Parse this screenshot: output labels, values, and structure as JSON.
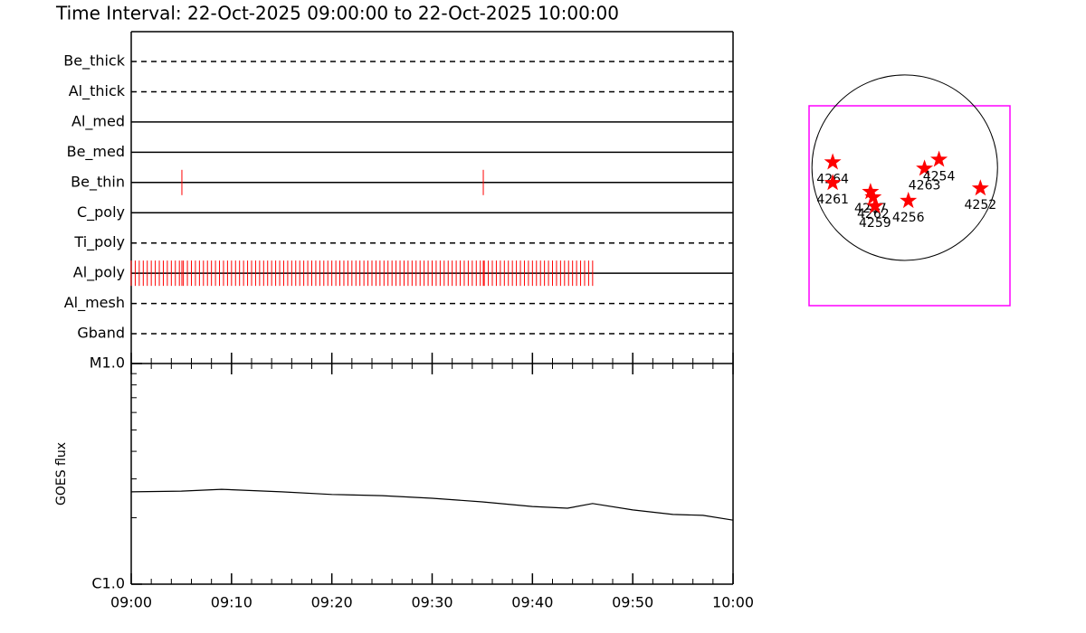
{
  "chart_data": [
    {
      "type": "timeline",
      "title": "Time Interval: 22-Oct-2025 09:00:00 to 22-Oct-2025 10:00:00",
      "xlim": [
        0,
        60
      ],
      "series": [
        {
          "name": "Be_thick",
          "line_style": "dashed",
          "color": "#ff0000",
          "values": []
        },
        {
          "name": "Al_thick",
          "line_style": "dashed",
          "color": "#ff0000",
          "values": []
        },
        {
          "name": "Al_med",
          "line_style": "solid",
          "color": "#ff0000",
          "values": []
        },
        {
          "name": "Be_med",
          "line_style": "solid",
          "color": "#ff0000",
          "values": []
        },
        {
          "name": "Be_thin",
          "line_style": "solid",
          "color": "#ff0000",
          "values": [
            5.05,
            35.1
          ]
        },
        {
          "name": "C_poly",
          "line_style": "solid",
          "color": "#ff0000",
          "values": []
        },
        {
          "name": "Ti_poly",
          "line_style": "dashed",
          "color": "#ff0000",
          "values": []
        },
        {
          "name": "Al_poly",
          "line_style": "solid",
          "color": "#ff0000",
          "values": [
            0,
            0.4,
            0.8,
            1.2,
            1.6,
            2,
            2.4,
            2.8,
            3.2,
            3.6,
            4,
            4.4,
            4.8,
            5.2,
            5.6,
            6,
            6.4,
            6.8,
            7.2,
            7.6,
            8,
            8.4,
            8.8,
            9.2,
            9.6,
            10,
            10.4,
            10.8,
            11.2,
            11.6,
            12,
            12.4,
            12.8,
            13.2,
            13.6,
            14,
            14.4,
            14.8,
            15.2,
            15.6,
            16,
            16.4,
            16.8,
            17.2,
            17.6,
            18,
            18.4,
            18.8,
            19.2,
            19.6,
            20,
            20.4,
            20.8,
            21.2,
            21.6,
            22,
            22.4,
            22.8,
            23.2,
            23.6,
            24,
            24.4,
            24.8,
            25.2,
            25.6,
            26,
            26.4,
            26.8,
            27.2,
            27.6,
            28,
            28.4,
            28.8,
            29.2,
            29.6,
            30,
            30.4,
            30.8,
            31.2,
            31.6,
            32,
            32.4,
            32.8,
            33.2,
            33.6,
            34,
            34.4,
            34.8,
            35.2,
            35.6,
            36,
            36.4,
            36.8,
            37.2,
            37.6,
            38,
            38.4,
            38.8,
            39.2,
            39.6,
            40,
            40.4,
            40.8,
            41.2,
            41.6,
            42,
            42.4,
            42.8,
            43.2,
            43.6,
            44,
            44.4,
            44.8,
            45.2,
            45.6,
            46,
            5.05,
            35.1
          ]
        },
        {
          "name": "Al_mesh",
          "line_style": "dashed",
          "color": "#ff0000",
          "values": []
        },
        {
          "name": "Gband",
          "line_style": "dashed",
          "color": "#ff0000",
          "values": []
        }
      ]
    },
    {
      "type": "line",
      "ylabel": "GOES flux",
      "log_scale": true,
      "color": "#000000",
      "xlim": [
        0,
        60
      ],
      "xticks": [
        {
          "value": 0,
          "label": "09:00"
        },
        {
          "value": 10,
          "label": "09:10"
        },
        {
          "value": 20,
          "label": "09:20"
        },
        {
          "value": 30,
          "label": "09:30"
        },
        {
          "value": 40,
          "label": "09:40"
        },
        {
          "value": 50,
          "label": "09:50"
        },
        {
          "value": 60,
          "label": "10:00"
        }
      ],
      "ylim": [
        1e-06,
        1e-05
      ],
      "yticks": [
        {
          "value": 1e-06,
          "label": "C1.0"
        },
        {
          "value": 1e-05,
          "label": "M1.0"
        }
      ],
      "x": [
        0,
        5,
        9,
        15,
        20,
        25,
        30,
        35,
        40,
        43.5,
        46,
        50,
        54,
        57,
        60
      ],
      "values": [
        2.62e-06,
        2.64e-06,
        2.69e-06,
        2.62e-06,
        2.55e-06,
        2.52e-06,
        2.45e-06,
        2.36e-06,
        2.25e-06,
        2.21e-06,
        2.32e-06,
        2.17e-06,
        2.07e-06,
        2.05e-06,
        1.95e-06
      ]
    },
    {
      "type": "scatter",
      "color": "#ff0000",
      "frame_color": "#ff00ff",
      "solar_radius": 970,
      "xlim": [
        -1000,
        1100
      ],
      "ylim": [
        -1450,
        650
      ],
      "x": [
        -753,
        -753,
        -358,
        -330,
        -311,
        38,
        207,
        358,
        791
      ],
      "values": [
        57,
        -160,
        -254,
        -311,
        -405,
        -348,
        -9,
        85,
        -217
      ],
      "labels": [
        "4264",
        "4261",
        "4267",
        "4262",
        "4259",
        "4256",
        "4263",
        "4254",
        "4252"
      ]
    }
  ]
}
